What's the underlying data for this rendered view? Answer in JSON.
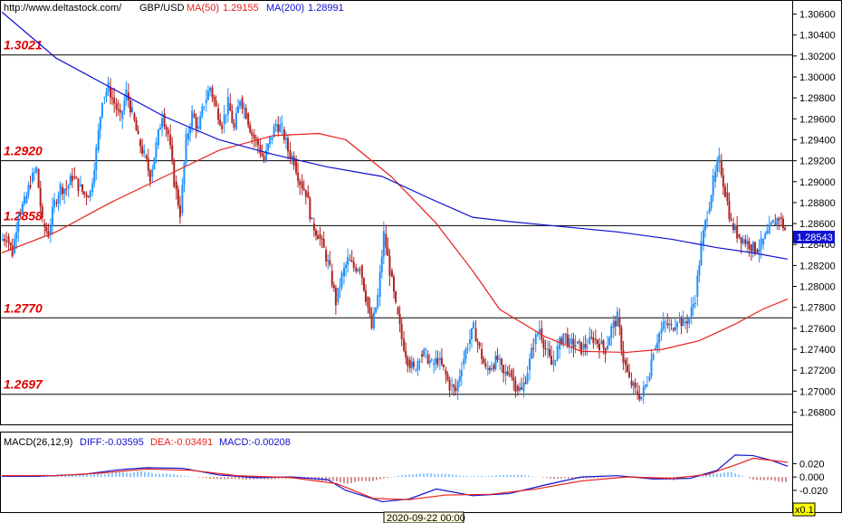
{
  "header": {
    "url": "http://www.deltastock.com/",
    "symbol": "GBP/USD",
    "ma50_label": "MA(50)",
    "ma50_value": "1.29155",
    "ma200_label": "MA(200)",
    "ma200_value": "1.28991"
  },
  "macd_header": {
    "label": "MACD(26,12,9)",
    "diff": "DIFF:-0.03595",
    "dea": "DEA:-0.03491",
    "macd": "MACD:-0.00208"
  },
  "footer": {
    "date_label": "2020-09-22 00:00",
    "zoom_label": "x0.1"
  },
  "colors": {
    "up": "#1e90ff",
    "down": "#b22222",
    "ma50": "#e8201c",
    "ma200": "#1010d0",
    "level_text": "#e00000",
    "diff": "#1010d0",
    "dea": "#e8201c"
  },
  "chart_data": [
    {
      "type": "candlestick",
      "title": "GBP/USD",
      "ylim": [
        1.267,
        1.307
      ],
      "yticks": [
        "1.30600",
        "1.30400",
        "1.30200",
        "1.30000",
        "1.29800",
        "1.29600",
        "1.29400",
        "1.29200",
        "1.29000",
        "1.28800",
        "1.28600",
        "1.28400",
        "1.28200",
        "1.28000",
        "1.27800",
        "1.27600",
        "1.27400",
        "1.27200",
        "1.27000",
        "1.26800"
      ],
      "current_price": "1.28543",
      "levels": [
        {
          "label": "1.3021",
          "value": 1.3021
        },
        {
          "label": "1.2920",
          "value": 1.292
        },
        {
          "label": "1.2858",
          "value": 1.2858
        },
        {
          "label": "1.2770",
          "value": 1.277
        },
        {
          "label": "1.2697",
          "value": 1.2697
        }
      ],
      "close_path": [
        1.2848,
        1.2832,
        1.287,
        1.288,
        1.29,
        1.2912,
        1.286,
        1.285,
        1.288,
        1.2895,
        1.2893,
        1.2905,
        1.2896,
        1.2888,
        1.289,
        1.293,
        1.298,
        1.299,
        1.2975,
        1.296,
        1.2985,
        1.2965,
        1.294,
        1.2925,
        1.2905,
        1.2935,
        1.2965,
        1.2945,
        1.29,
        1.287,
        1.294,
        1.2965,
        1.295,
        1.2975,
        1.299,
        1.297,
        1.2955,
        1.2975,
        1.295,
        1.298,
        1.2965,
        1.2945,
        1.2935,
        1.292,
        1.294,
        1.2955,
        1.295,
        1.293,
        1.292,
        1.29,
        1.289,
        1.286,
        1.285,
        1.2835,
        1.2815,
        1.2785,
        1.281,
        1.2825,
        1.2818,
        1.282,
        1.279,
        1.276,
        1.279,
        1.285,
        1.2815,
        1.278,
        1.275,
        1.273,
        1.272,
        1.2735,
        1.2735,
        1.2725,
        1.273,
        1.272,
        1.2705,
        1.27,
        1.2725,
        1.2745,
        1.276,
        1.274,
        1.272,
        1.2725,
        1.273,
        1.2715,
        1.272,
        1.2705,
        1.27,
        1.272,
        1.2745,
        1.276,
        1.274,
        1.2725,
        1.274,
        1.2755,
        1.2745,
        1.2745,
        1.274,
        1.2745,
        1.275,
        1.2745,
        1.274,
        1.276,
        1.277,
        1.273,
        1.271,
        1.27,
        1.2695,
        1.271,
        1.274,
        1.2755,
        1.2765,
        1.276,
        1.277,
        1.2765,
        1.277,
        1.279,
        1.284,
        1.287,
        1.29,
        1.292,
        1.289,
        1.286,
        1.285,
        1.2845,
        1.284,
        1.2835,
        1.284,
        1.285,
        1.286,
        1.2866,
        1.2854
      ],
      "ma50": [
        [
          0,
          1.2832
        ],
        [
          60,
          1.2852
        ],
        [
          120,
          1.288
        ],
        [
          180,
          1.2905
        ],
        [
          240,
          1.293
        ],
        [
          300,
          1.2944
        ],
        [
          350,
          1.2946
        ],
        [
          380,
          1.294
        ],
        [
          430,
          1.2905
        ],
        [
          480,
          1.286
        ],
        [
          520,
          1.2815
        ],
        [
          550,
          1.2778
        ],
        [
          600,
          1.2752
        ],
        [
          640,
          1.2738
        ],
        [
          690,
          1.2737
        ],
        [
          730,
          1.274
        ],
        [
          770,
          1.2748
        ],
        [
          810,
          1.2764
        ],
        [
          840,
          1.2778
        ],
        [
          868,
          1.2788
        ]
      ],
      "ma200": [
        [
          0,
          1.3062
        ],
        [
          60,
          1.3018
        ],
        [
          120,
          1.299
        ],
        [
          180,
          1.2962
        ],
        [
          240,
          1.294
        ],
        [
          300,
          1.2926
        ],
        [
          360,
          1.2914
        ],
        [
          420,
          1.2905
        ],
        [
          470,
          1.2885
        ],
        [
          520,
          1.2866
        ],
        [
          560,
          1.2862
        ],
        [
          620,
          1.2857
        ],
        [
          680,
          1.2852
        ],
        [
          740,
          1.2845
        ],
        [
          790,
          1.2837
        ],
        [
          830,
          1.2832
        ],
        [
          868,
          1.2826
        ]
      ]
    },
    {
      "type": "macd",
      "title": "MACD(26,12,9)",
      "ylim": [
        -0.05,
        0.045
      ],
      "yticks": [
        0.02,
        0.0,
        -0.02
      ],
      "ytick_labels": [
        "0.020",
        "0.000",
        "-0.020"
      ],
      "diff": [
        [
          0,
          0.001
        ],
        [
          40,
          0.001
        ],
        [
          90,
          0.004
        ],
        [
          130,
          0.011
        ],
        [
          160,
          0.014
        ],
        [
          200,
          0.013
        ],
        [
          240,
          0.003
        ],
        [
          280,
          -0.001
        ],
        [
          320,
          0.0
        ],
        [
          360,
          -0.004
        ],
        [
          380,
          -0.02
        ],
        [
          420,
          -0.037
        ],
        [
          450,
          -0.033
        ],
        [
          480,
          -0.018
        ],
        [
          520,
          -0.028
        ],
        [
          560,
          -0.025
        ],
        [
          600,
          -0.012
        ],
        [
          640,
          0.0
        ],
        [
          680,
          0.002
        ],
        [
          720,
          -0.003
        ],
        [
          760,
          -0.002
        ],
        [
          790,
          0.01
        ],
        [
          810,
          0.033
        ],
        [
          830,
          0.032
        ],
        [
          850,
          0.025
        ],
        [
          868,
          0.016
        ]
      ],
      "dea": [
        [
          0,
          0.002
        ],
        [
          60,
          0.002
        ],
        [
          110,
          0.006
        ],
        [
          160,
          0.012
        ],
        [
          210,
          0.01
        ],
        [
          260,
          0.002
        ],
        [
          320,
          -0.001
        ],
        [
          370,
          -0.01
        ],
        [
          410,
          -0.032
        ],
        [
          450,
          -0.034
        ],
        [
          490,
          -0.027
        ],
        [
          540,
          -0.026
        ],
        [
          590,
          -0.018
        ],
        [
          640,
          -0.006
        ],
        [
          690,
          0.0
        ],
        [
          740,
          -0.002
        ],
        [
          780,
          0.004
        ],
        [
          810,
          0.018
        ],
        [
          830,
          0.028
        ],
        [
          850,
          0.025
        ],
        [
          868,
          0.022
        ]
      ],
      "hist_regions": [
        [
          0,
          0.003
        ],
        [
          60,
          0.004
        ],
        [
          110,
          0.006
        ],
        [
          150,
          0.009
        ],
        [
          190,
          0.004
        ],
        [
          230,
          -0.003
        ],
        [
          280,
          -0.004
        ],
        [
          330,
          -0.002
        ],
        [
          380,
          -0.01
        ],
        [
          410,
          -0.006
        ],
        [
          450,
          0.005
        ],
        [
          480,
          0.006
        ],
        [
          520,
          0.001
        ],
        [
          570,
          0.004
        ],
        [
          610,
          -0.003
        ],
        [
          650,
          -0.002
        ],
        [
          700,
          0.002
        ],
        [
          740,
          -0.006
        ],
        [
          780,
          0.006
        ],
        [
          805,
          0.008
        ],
        [
          830,
          -0.004
        ],
        [
          868,
          -0.008
        ]
      ]
    }
  ]
}
